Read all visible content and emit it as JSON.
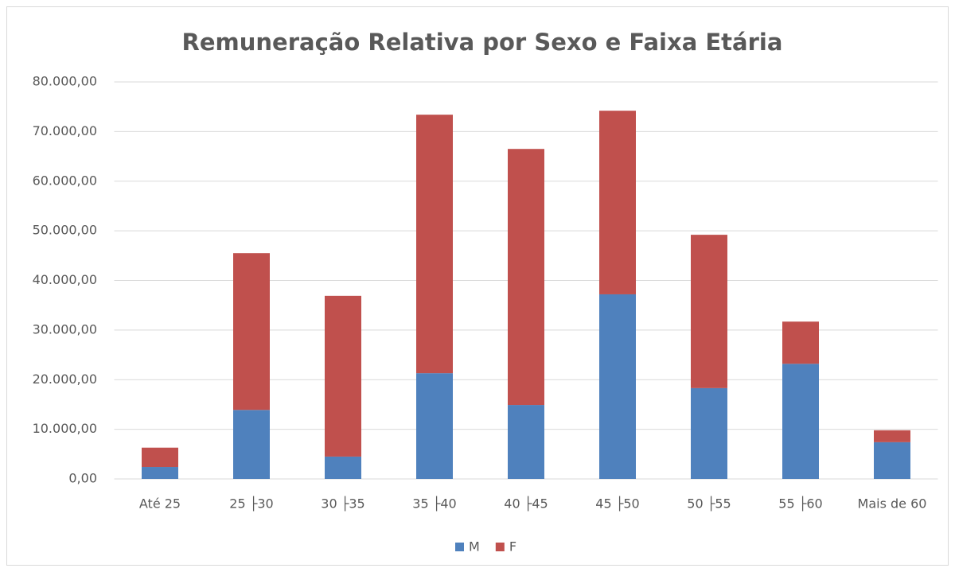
{
  "chart_data": {
    "type": "stacked_bar",
    "title": "Remuneração Relativa por Sexo e Faixa Etária",
    "categories": [
      "Até 25",
      "25 ├30",
      "30 ├35",
      "35 ├40",
      "40 ├45",
      "45 ├50",
      "50 ├55",
      "55 ├60",
      "Mais de 60"
    ],
    "series": [
      {
        "name": "M",
        "color": "#4f81bd",
        "values": [
          2400,
          13900,
          4500,
          21300,
          14900,
          37200,
          18300,
          23200,
          7400
        ]
      },
      {
        "name": "F",
        "color": "#c0504d",
        "values": [
          3900,
          31600,
          32400,
          52100,
          51600,
          37000,
          30900,
          8500,
          2400
        ]
      }
    ],
    "ylim": [
      0,
      80000
    ],
    "yticks": [
      {
        "value": 0,
        "label": "0,00"
      },
      {
        "value": 10000,
        "label": "10.000,00"
      },
      {
        "value": 20000,
        "label": "20.000,00"
      },
      {
        "value": 30000,
        "label": "30.000,00"
      },
      {
        "value": 40000,
        "label": "40.000,00"
      },
      {
        "value": 50000,
        "label": "50.000,00"
      },
      {
        "value": 60000,
        "label": "60.000,00"
      },
      {
        "value": 70000,
        "label": "70.000,00"
      },
      {
        "value": 80000,
        "label": "80.000,00"
      }
    ],
    "grid": true,
    "legend": "bottom"
  }
}
